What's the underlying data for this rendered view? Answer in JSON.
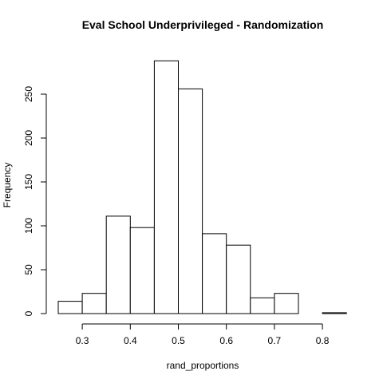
{
  "chart_data": {
    "type": "bar",
    "title": "Eval School Underprivileged - Randomization",
    "xlabel": "rand_proportions",
    "ylabel": "Frequency",
    "bins": [
      {
        "start": 0.25,
        "end": 0.3,
        "count": 14
      },
      {
        "start": 0.3,
        "end": 0.35,
        "count": 23
      },
      {
        "start": 0.35,
        "end": 0.4,
        "count": 111
      },
      {
        "start": 0.4,
        "end": 0.45,
        "count": 98
      },
      {
        "start": 0.45,
        "end": 0.5,
        "count": 288
      },
      {
        "start": 0.5,
        "end": 0.55,
        "count": 256
      },
      {
        "start": 0.55,
        "end": 0.6,
        "count": 91
      },
      {
        "start": 0.6,
        "end": 0.65,
        "count": 78
      },
      {
        "start": 0.65,
        "end": 0.7,
        "count": 18
      },
      {
        "start": 0.7,
        "end": 0.75,
        "count": 23
      },
      {
        "start": 0.75,
        "end": 0.8,
        "count": 0
      },
      {
        "start": 0.8,
        "end": 0.85,
        "count": 1
      }
    ],
    "x_ticks": [
      "0.3",
      "0.4",
      "0.5",
      "0.6",
      "0.7",
      "0.8"
    ],
    "y_ticks": [
      "0",
      "50",
      "100",
      "150",
      "200",
      "250"
    ],
    "xlim": [
      0.25,
      0.85
    ],
    "ylim": [
      0,
      290
    ],
    "grid": false,
    "legend": "none"
  }
}
